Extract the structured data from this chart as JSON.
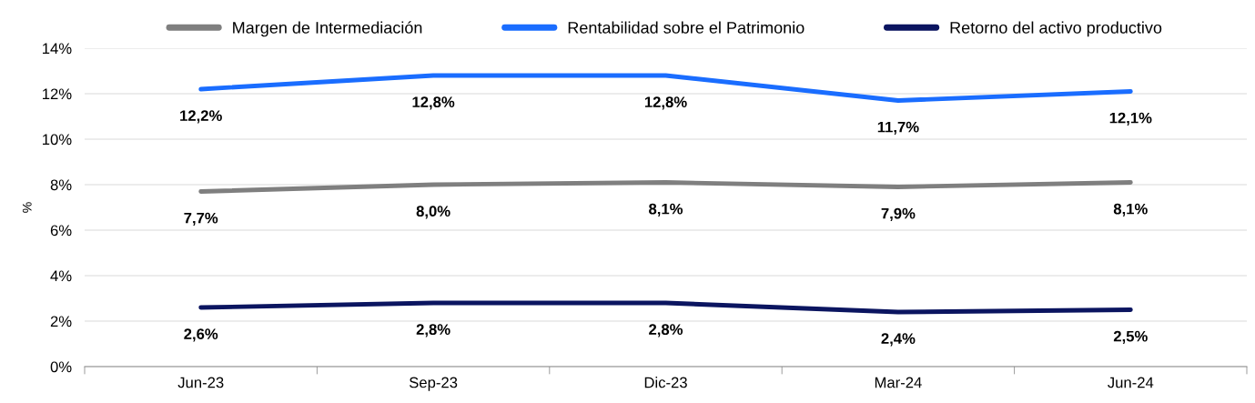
{
  "chart_data": {
    "type": "line",
    "ylabel": "%",
    "categories": [
      "Jun-23",
      "Sep-23",
      "Dic-23",
      "Mar-24",
      "Jun-24"
    ],
    "series": [
      {
        "name": "Margen de Intermediación",
        "color": "#7f7f7f",
        "values": [
          7.7,
          8.0,
          8.1,
          7.9,
          8.1
        ],
        "value_labels": [
          "7,7%",
          "8,0%",
          "8,1%",
          "7,9%",
          "8,1%"
        ]
      },
      {
        "name": "Rentabilidad sobre el Patrimonio",
        "color": "#1a6dff",
        "values": [
          12.2,
          12.8,
          12.8,
          11.7,
          12.1
        ],
        "value_labels": [
          "12,2%",
          "12,8%",
          "12,8%",
          "11,7%",
          "12,1%"
        ]
      },
      {
        "name": "Retorno del activo productivo",
        "color": "#0b1560",
        "values": [
          2.6,
          2.8,
          2.8,
          2.4,
          2.5
        ],
        "value_labels": [
          "2,6%",
          "2,8%",
          "2,8%",
          "2,4%",
          "2,5%"
        ]
      }
    ],
    "ylim": [
      0,
      14
    ],
    "yticks": [
      {
        "value": 0,
        "label": "0%"
      },
      {
        "value": 2,
        "label": "2%"
      },
      {
        "value": 4,
        "label": "4%"
      },
      {
        "value": 6,
        "label": "6%"
      },
      {
        "value": 8,
        "label": "8%"
      },
      {
        "value": 10,
        "label": "10%"
      },
      {
        "value": 12,
        "label": "12%"
      },
      {
        "value": 14,
        "label": "14%"
      }
    ],
    "grid": "y",
    "legend": "top",
    "marker": "none",
    "line_style": "solid"
  }
}
